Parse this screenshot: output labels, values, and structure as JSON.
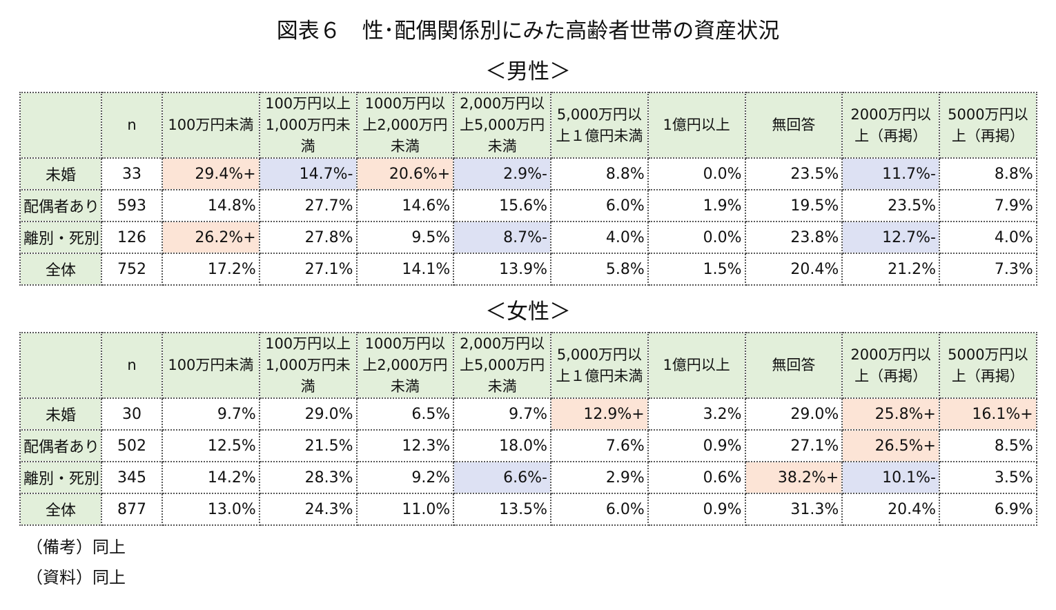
{
  "title": "図表６　性･配偶関係別にみた高齢者世帯の資産状況",
  "headers": [
    "",
    "n",
    "100万円未満",
    "100万円以上1,000万円未満",
    "1000万円以上2,000万円未満",
    "2,000万円以上5,000万円未満",
    "5,000万円以上１億円未満",
    "1億円以上",
    "無回答",
    "2000万円以上（再掲）",
    "5000万円以上（再掲）"
  ],
  "colors": {
    "header_bg": "#e2efda",
    "positive_bg": "#fce4d6",
    "negative_bg": "#dde1f3"
  },
  "male": {
    "subtitle": "＜男性＞",
    "rows": [
      {
        "label": "未婚",
        "n": "33",
        "cells": [
          "29.4%+",
          "14.7%-",
          "20.6%+",
          "2.9%-",
          "8.8%",
          "0.0%",
          "23.5%",
          "11.7%-",
          "8.8%"
        ]
      },
      {
        "label": "配偶者あり",
        "n": "593",
        "cells": [
          "14.8%",
          "27.7%",
          "14.6%",
          "15.6%",
          "6.0%",
          "1.9%",
          "19.5%",
          "23.5%",
          "7.9%"
        ]
      },
      {
        "label": "離別・死別",
        "n": "126",
        "cells": [
          "26.2%+",
          "27.8%",
          "9.5%",
          "8.7%-",
          "4.0%",
          "0.0%",
          "23.8%",
          "12.7%-",
          "4.0%"
        ]
      },
      {
        "label": "全体",
        "n": "752",
        "cells": [
          "17.2%",
          "27.1%",
          "14.1%",
          "13.9%",
          "5.8%",
          "1.5%",
          "20.4%",
          "21.2%",
          "7.3%"
        ]
      }
    ]
  },
  "female": {
    "subtitle": "＜女性＞",
    "rows": [
      {
        "label": "未婚",
        "n": "30",
        "cells": [
          "9.7%",
          "29.0%",
          "6.5%",
          "9.7%",
          "12.9%+",
          "3.2%",
          "29.0%",
          "25.8%+",
          "16.1%+"
        ]
      },
      {
        "label": "配偶者あり",
        "n": "502",
        "cells": [
          "12.5%",
          "21.5%",
          "12.3%",
          "18.0%",
          "7.6%",
          "0.9%",
          "27.1%",
          "26.5%+",
          "8.5%"
        ]
      },
      {
        "label": "離別・死別",
        "n": "345",
        "cells": [
          "14.2%",
          "28.3%",
          "9.2%",
          "6.6%-",
          "2.9%",
          "0.6%",
          "38.2%+",
          "10.1%-",
          "3.5%"
        ]
      },
      {
        "label": "全体",
        "n": "877",
        "cells": [
          "13.0%",
          "24.3%",
          "11.0%",
          "13.5%",
          "6.0%",
          "0.9%",
          "31.3%",
          "20.4%",
          "6.9%"
        ]
      }
    ]
  },
  "notes": {
    "remarks": "（備考）同上",
    "source": "（資料）同上"
  }
}
